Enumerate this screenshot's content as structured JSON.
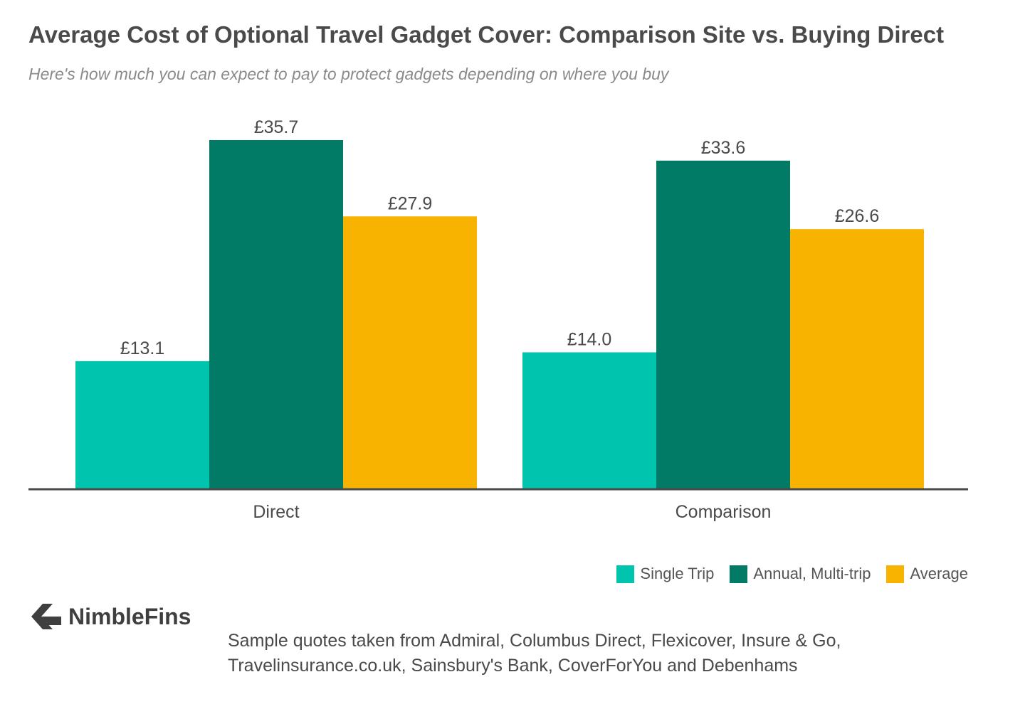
{
  "title": "Average Cost of Optional Travel Gadget Cover: Comparison Site vs. Buying Direct",
  "subtitle": "Here's how much you can expect to pay to protect gadgets depending on where you buy",
  "brand": {
    "name": "NimbleFins",
    "logo_icon": "chevron-left-icon"
  },
  "source": {
    "line1": "Sample quotes taken from Admiral, Columbus Direct, Flexicover, Insure & Go,",
    "line2": "Travelinsurance.co.uk, Sainsbury's Bank, CoverForYou and Debenhams"
  },
  "chart_data": {
    "type": "bar",
    "categories": [
      "Direct",
      "Comparison"
    ],
    "series": [
      {
        "name": "Single Trip",
        "values": [
          13.1,
          14.0
        ],
        "labels": [
          "£13.1",
          "£14.0"
        ],
        "color": "#00c4ae"
      },
      {
        "name": "Annual, Multi-trip",
        "values": [
          35.7,
          33.6
        ],
        "labels": [
          "£35.7",
          "£33.6"
        ],
        "color": "#017a66"
      },
      {
        "name": "Average",
        "values": [
          27.9,
          26.6
        ],
        "labels": [
          "£27.9",
          "£26.6"
        ],
        "color": "#f8b301"
      }
    ],
    "ylim": [
      0,
      35.7
    ],
    "grid": false,
    "legend_position": "bottom-right",
    "xlabel": "",
    "ylabel": ""
  },
  "colors": {
    "axis": "#4a4a4a",
    "text": "#4a4a4a",
    "subtitle": "#8a8a8a"
  }
}
